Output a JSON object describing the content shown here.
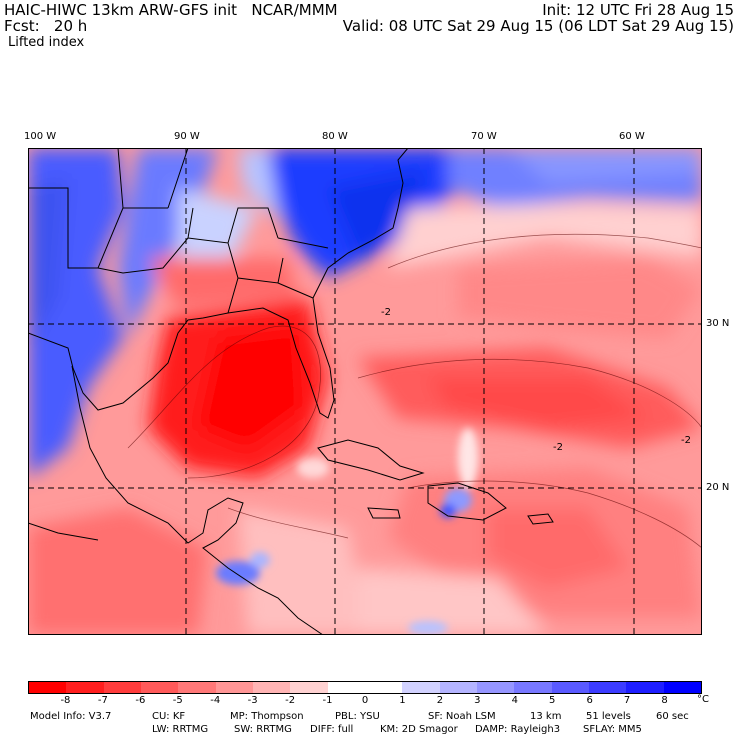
{
  "header": {
    "line1_left": "HAIC-HIWC 13km ARW-GFS init   NCAR/MMM",
    "line1_right": "Init: 12 UTC Fri 28 Aug 15",
    "line2_left": "Fcst:   20 h",
    "line2_right": "Valid: 08 UTC Sat 29 Aug 15 (06 LDT Sat 29 Aug 15)",
    "field": "Lifted index"
  },
  "map": {
    "lon_labels": [
      "100 W",
      "90 W",
      "80 W",
      "70 W",
      "60 W"
    ],
    "lat_labels": [
      "30 N",
      "20 N"
    ],
    "contour_labels": [
      "-2",
      "-2",
      "-2"
    ],
    "colors": {
      "land_border": "#000000",
      "grid_line": "#000000"
    }
  },
  "colorbar": {
    "unit": "°C",
    "ticks": [
      "-8",
      "-7",
      "-6",
      "-5",
      "-4",
      "-3",
      "-2",
      "-1",
      "0",
      "1",
      "2",
      "3",
      "4",
      "5",
      "6",
      "7",
      "8"
    ],
    "colors": [
      "#ff0000",
      "#ff1e1e",
      "#ff3c3c",
      "#ff5a5a",
      "#ff7878",
      "#ff9696",
      "#ffb4b4",
      "#ffd2d2",
      "#ffffff",
      "#ffffff",
      "#d2d2ff",
      "#b4b4ff",
      "#9696ff",
      "#7878ff",
      "#5a5aff",
      "#3c3cff",
      "#1e1eff",
      "#0000ff"
    ]
  },
  "model_info": {
    "line1": [
      "Model Info: V3.7",
      "CU: KF",
      "MP: Thompson",
      "PBL: YSU",
      "SF: Noah LSM",
      "13 km",
      "51 levels",
      "60 sec"
    ],
    "line2": [
      "LW: RRTMG",
      "SW: RRTMG",
      "DIFF: full",
      "KM: 2D Smagor",
      "DAMP: Rayleigh3",
      "SFLAY: MM5"
    ]
  }
}
